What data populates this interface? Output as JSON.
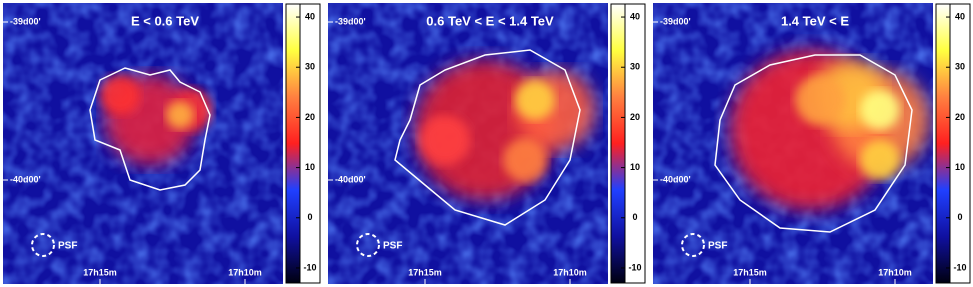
{
  "chart_data": [
    {
      "type": "heatmap",
      "title": "E < 0.6 TeV",
      "yaxis_labels": [
        "-39d00'",
        "-40d00'"
      ],
      "xaxis_labels": [
        "17h15m",
        "17h10m"
      ],
      "annotation": "PSF",
      "colorbar": {
        "ylim": [
          -13,
          42.6
        ],
        "yticks": [
          -10,
          0,
          10,
          20,
          30,
          40
        ],
        "colormap": [
          "#000010",
          "#1010a0",
          "#2040ff",
          "#ff2020",
          "#ff8040",
          "#ffff40",
          "#ffffff"
        ]
      }
    },
    {
      "type": "heatmap",
      "title": "0.6 TeV < E < 1.4 TeV",
      "yaxis_labels": [
        "-39d00'",
        "-40d00'"
      ],
      "xaxis_labels": [
        "17h15m",
        "17h10m"
      ],
      "annotation": "PSF",
      "colorbar": {
        "ylim": [
          -13,
          42.6
        ],
        "yticks": [
          -10,
          0,
          10,
          20,
          30,
          40
        ],
        "colormap": [
          "#000010",
          "#1010a0",
          "#2040ff",
          "#ff2020",
          "#ff8040",
          "#ffff40",
          "#ffffff"
        ]
      }
    },
    {
      "type": "heatmap",
      "title": "1.4 TeV < E",
      "yaxis_labels": [
        "-39d00'",
        "-40d00'"
      ],
      "xaxis_labels": [
        "17h15m",
        "17h10m"
      ],
      "annotation": "PSF",
      "colorbar": {
        "ylim": [
          -13,
          42.6
        ],
        "yticks": [
          -10,
          0,
          10,
          20,
          30,
          40
        ],
        "colormap": [
          "#000010",
          "#1010a0",
          "#2040ff",
          "#ff2020",
          "#ff8040",
          "#ffff40",
          "#ffffff"
        ]
      }
    }
  ]
}
